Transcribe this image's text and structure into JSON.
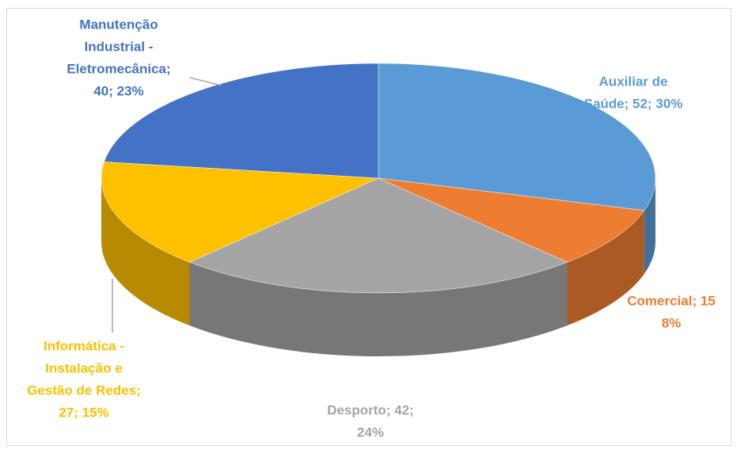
{
  "chart_data": {
    "type": "pie3d",
    "values": [
      52,
      15,
      42,
      27,
      40
    ],
    "value_labels": [
      [
        "Auxiliar de",
        "Saúde; 52; 30%"
      ],
      [
        "Comercial; 15",
        "8%"
      ],
      [
        "Desporto; 42;",
        "24%"
      ],
      [
        "Informática -",
        "Instalação e",
        "Gestão de Redes;",
        "27; 15%"
      ],
      [
        "Manutenção",
        "Industrial -",
        "Eletromecânica;",
        "40; 23%"
      ]
    ],
    "colors": [
      "#5b9bd5",
      "#ed7d31",
      "#a5a5a5",
      "#ffc000",
      "#4472c4"
    ]
  }
}
